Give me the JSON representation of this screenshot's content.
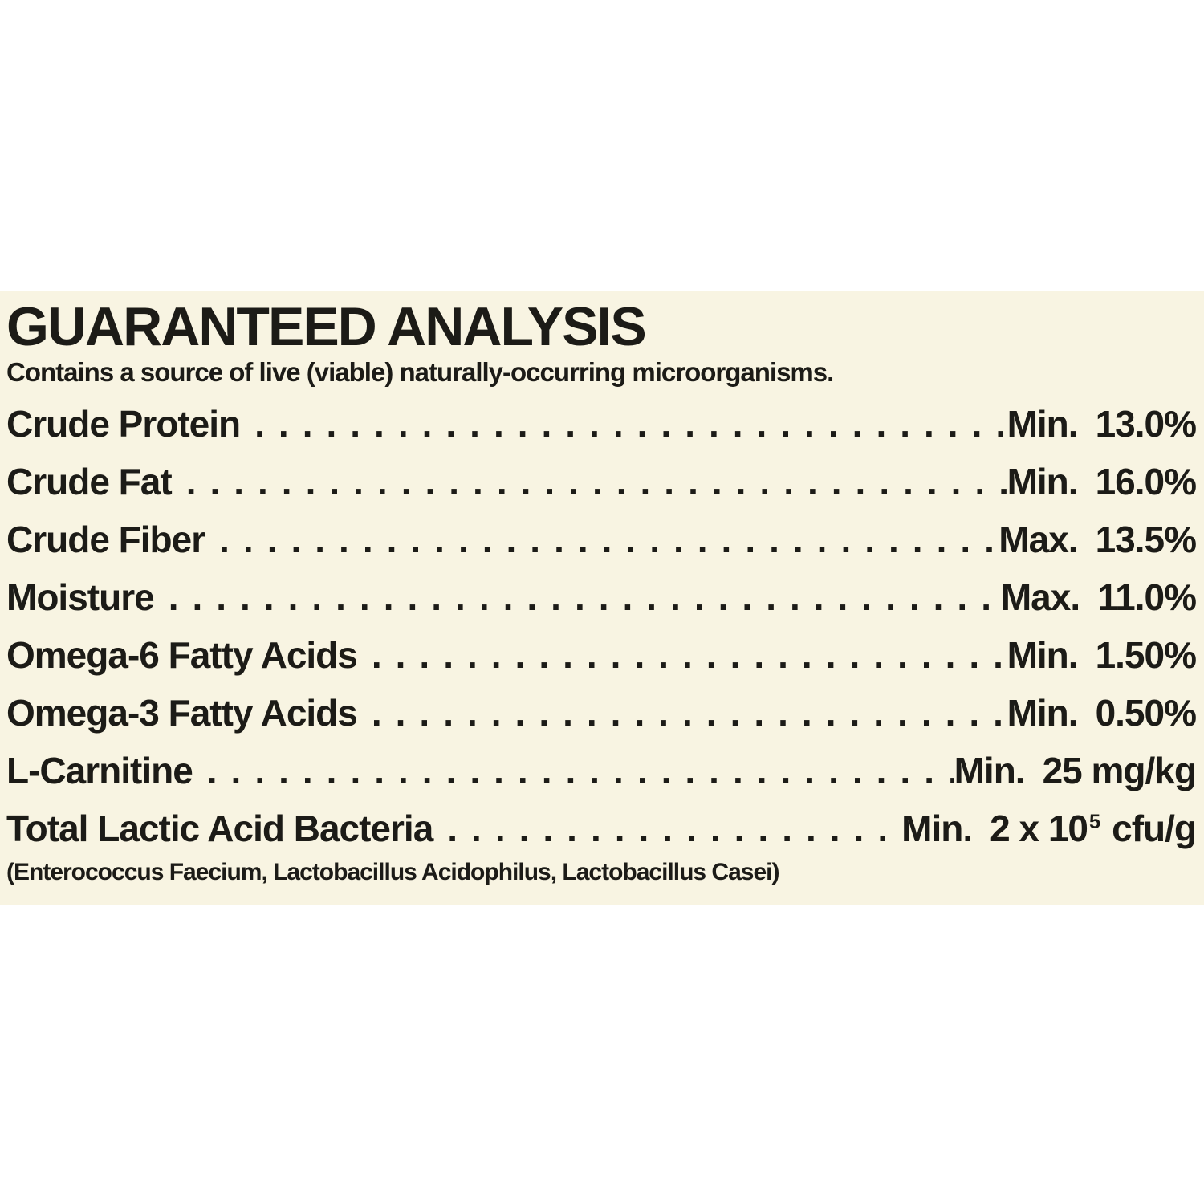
{
  "analysis": {
    "title": "GUARANTEED ANALYSIS",
    "subtitle": "Contains a source of live (viable) naturally-occurring microorganisms.",
    "rows": [
      {
        "label": "Crude Protein",
        "qualifier": "Min.",
        "amount": "13.0%"
      },
      {
        "label": "Crude Fat",
        "qualifier": "Min.",
        "amount": "16.0%"
      },
      {
        "label": "Crude Fiber",
        "qualifier": "Max.",
        "amount": "13.5%"
      },
      {
        "label": "Moisture",
        "qualifier": "Max.",
        "amount": "11.0%"
      },
      {
        "label": "Omega-6 Fatty Acids",
        "qualifier": "Min.",
        "amount": "1.50%"
      },
      {
        "label": "Omega-3 Fatty Acids",
        "qualifier": "Min.",
        "amount": "0.50%"
      },
      {
        "label": "L-Carnitine",
        "qualifier": "Min.",
        "amount": "25 mg/kg"
      },
      {
        "label": "Total Lactic Acid Bacteria",
        "qualifier": "Min.",
        "amount": "2 x 10",
        "superscript": "5",
        "amount_suffix": "cfu/g"
      }
    ],
    "footnote": "(Enterococcus Faecium, Lactobacillus Acidophilus, Lactobacillus Casei)",
    "colors": {
      "panel_background": "#f8f4e2",
      "text": "#1c1b17",
      "page_background": "#ffffff"
    }
  }
}
